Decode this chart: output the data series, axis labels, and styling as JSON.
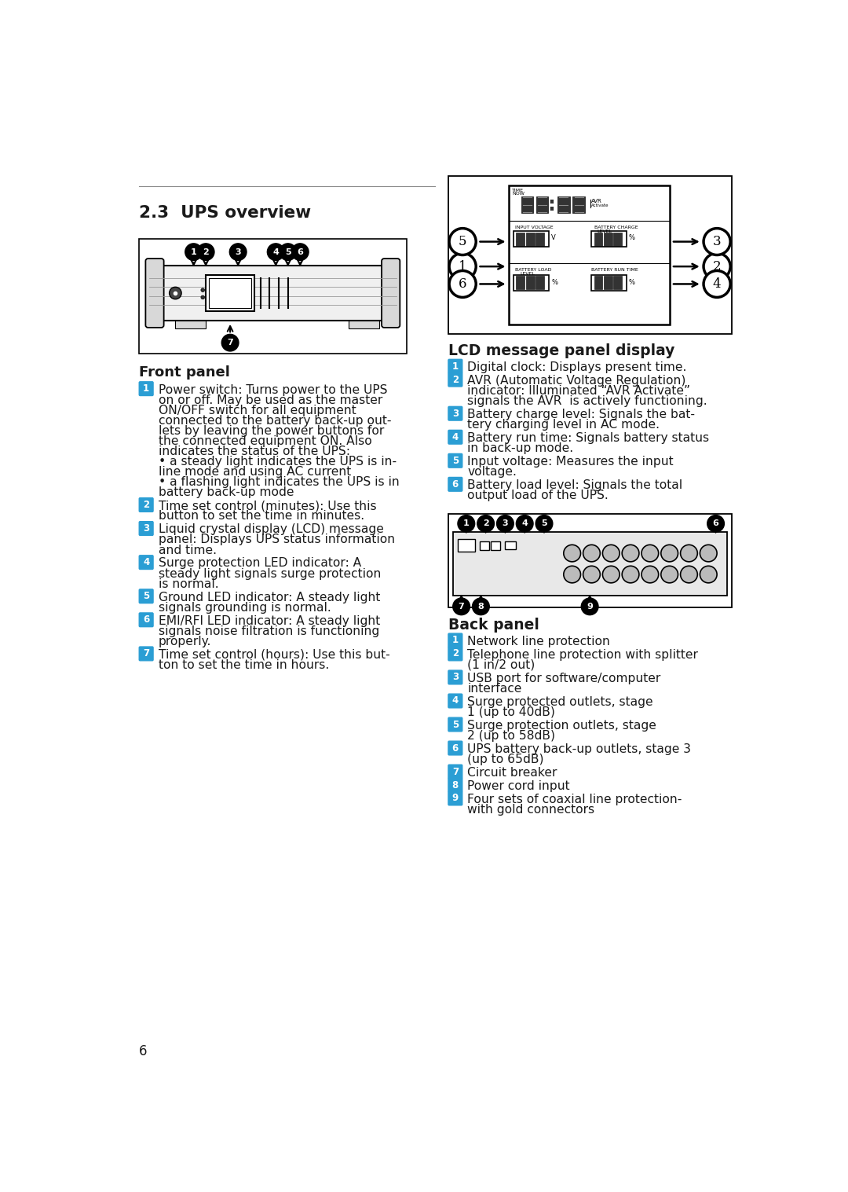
{
  "bg_color": "#ffffff",
  "title": "2.3  UPS overview",
  "front_panel_title": "Front panel",
  "lcd_panel_title": "LCD message panel display",
  "back_panel_title": "Back panel",
  "blue_color": "#2B9ED4",
  "text_color": "#1a1a1a",
  "front_items": [
    [
      "1",
      "Power switch: Turns power to the UPS\non or off. May be used as the master\nON/OFF switch for all equipment\nconnected to the battery back-up out-\nlets by leaving the power buttons for\nthe connected equipment ON. Also\nindicates the status of the UPS:\n• a steady light indicates the UPS is in-\nline mode and using AC current\n• a flashing light indicates the UPS is in\nbattery back-up mode"
    ],
    [
      "2",
      "Time set control (minutes): Use this\nbutton to set the time in minutes."
    ],
    [
      "3",
      "Liquid crystal display (LCD) message\npanel: Displays UPS status information\nand time."
    ],
    [
      "4",
      "Surge protection LED indicator: A\nsteady light signals surge protection\nis normal."
    ],
    [
      "5",
      "Ground LED indicator: A steady light\nsignals grounding is normal."
    ],
    [
      "6",
      "EMI/RFI LED indicator: A steady light\nsignals noise filtration is functioning\nproperly."
    ],
    [
      "7",
      "Time set control (hours): Use this but-\nton to set the time in hours."
    ]
  ],
  "lcd_items": [
    [
      "1",
      "Digital clock: Displays present time."
    ],
    [
      "2",
      "AVR (Automatic Voltage Regulation)\nindicator: Illuminated “AVR Activate”\nsignals the AVR  is actively functioning."
    ],
    [
      "3",
      "Battery charge level: Signals the bat-\ntery charging level in AC mode."
    ],
    [
      "4",
      "Battery run time: Signals battery status\nin back-up mode."
    ],
    [
      "5",
      "Input voltage: Measures the input\nvoltage."
    ],
    [
      "6",
      "Battery load level: Signals the total\noutput load of the UPS."
    ]
  ],
  "back_items": [
    [
      "1",
      "Network line protection"
    ],
    [
      "2",
      "Telephone line protection with splitter\n(1 in/2 out)"
    ],
    [
      "3",
      "USB port for software/computer\ninterface"
    ],
    [
      "4",
      "Surge protected outlets, stage\n1 (up to 40dB)"
    ],
    [
      "5",
      "Surge protection outlets, stage\n2 (up to 58dB)"
    ],
    [
      "6",
      "UPS battery back-up outlets, stage 3\n(up to 65dB)"
    ],
    [
      "7",
      "Circuit breaker"
    ],
    [
      "8",
      "Power cord input"
    ],
    [
      "9",
      "Four sets of coaxial line protection-\nwith gold connectors"
    ]
  ],
  "page_number": "6"
}
